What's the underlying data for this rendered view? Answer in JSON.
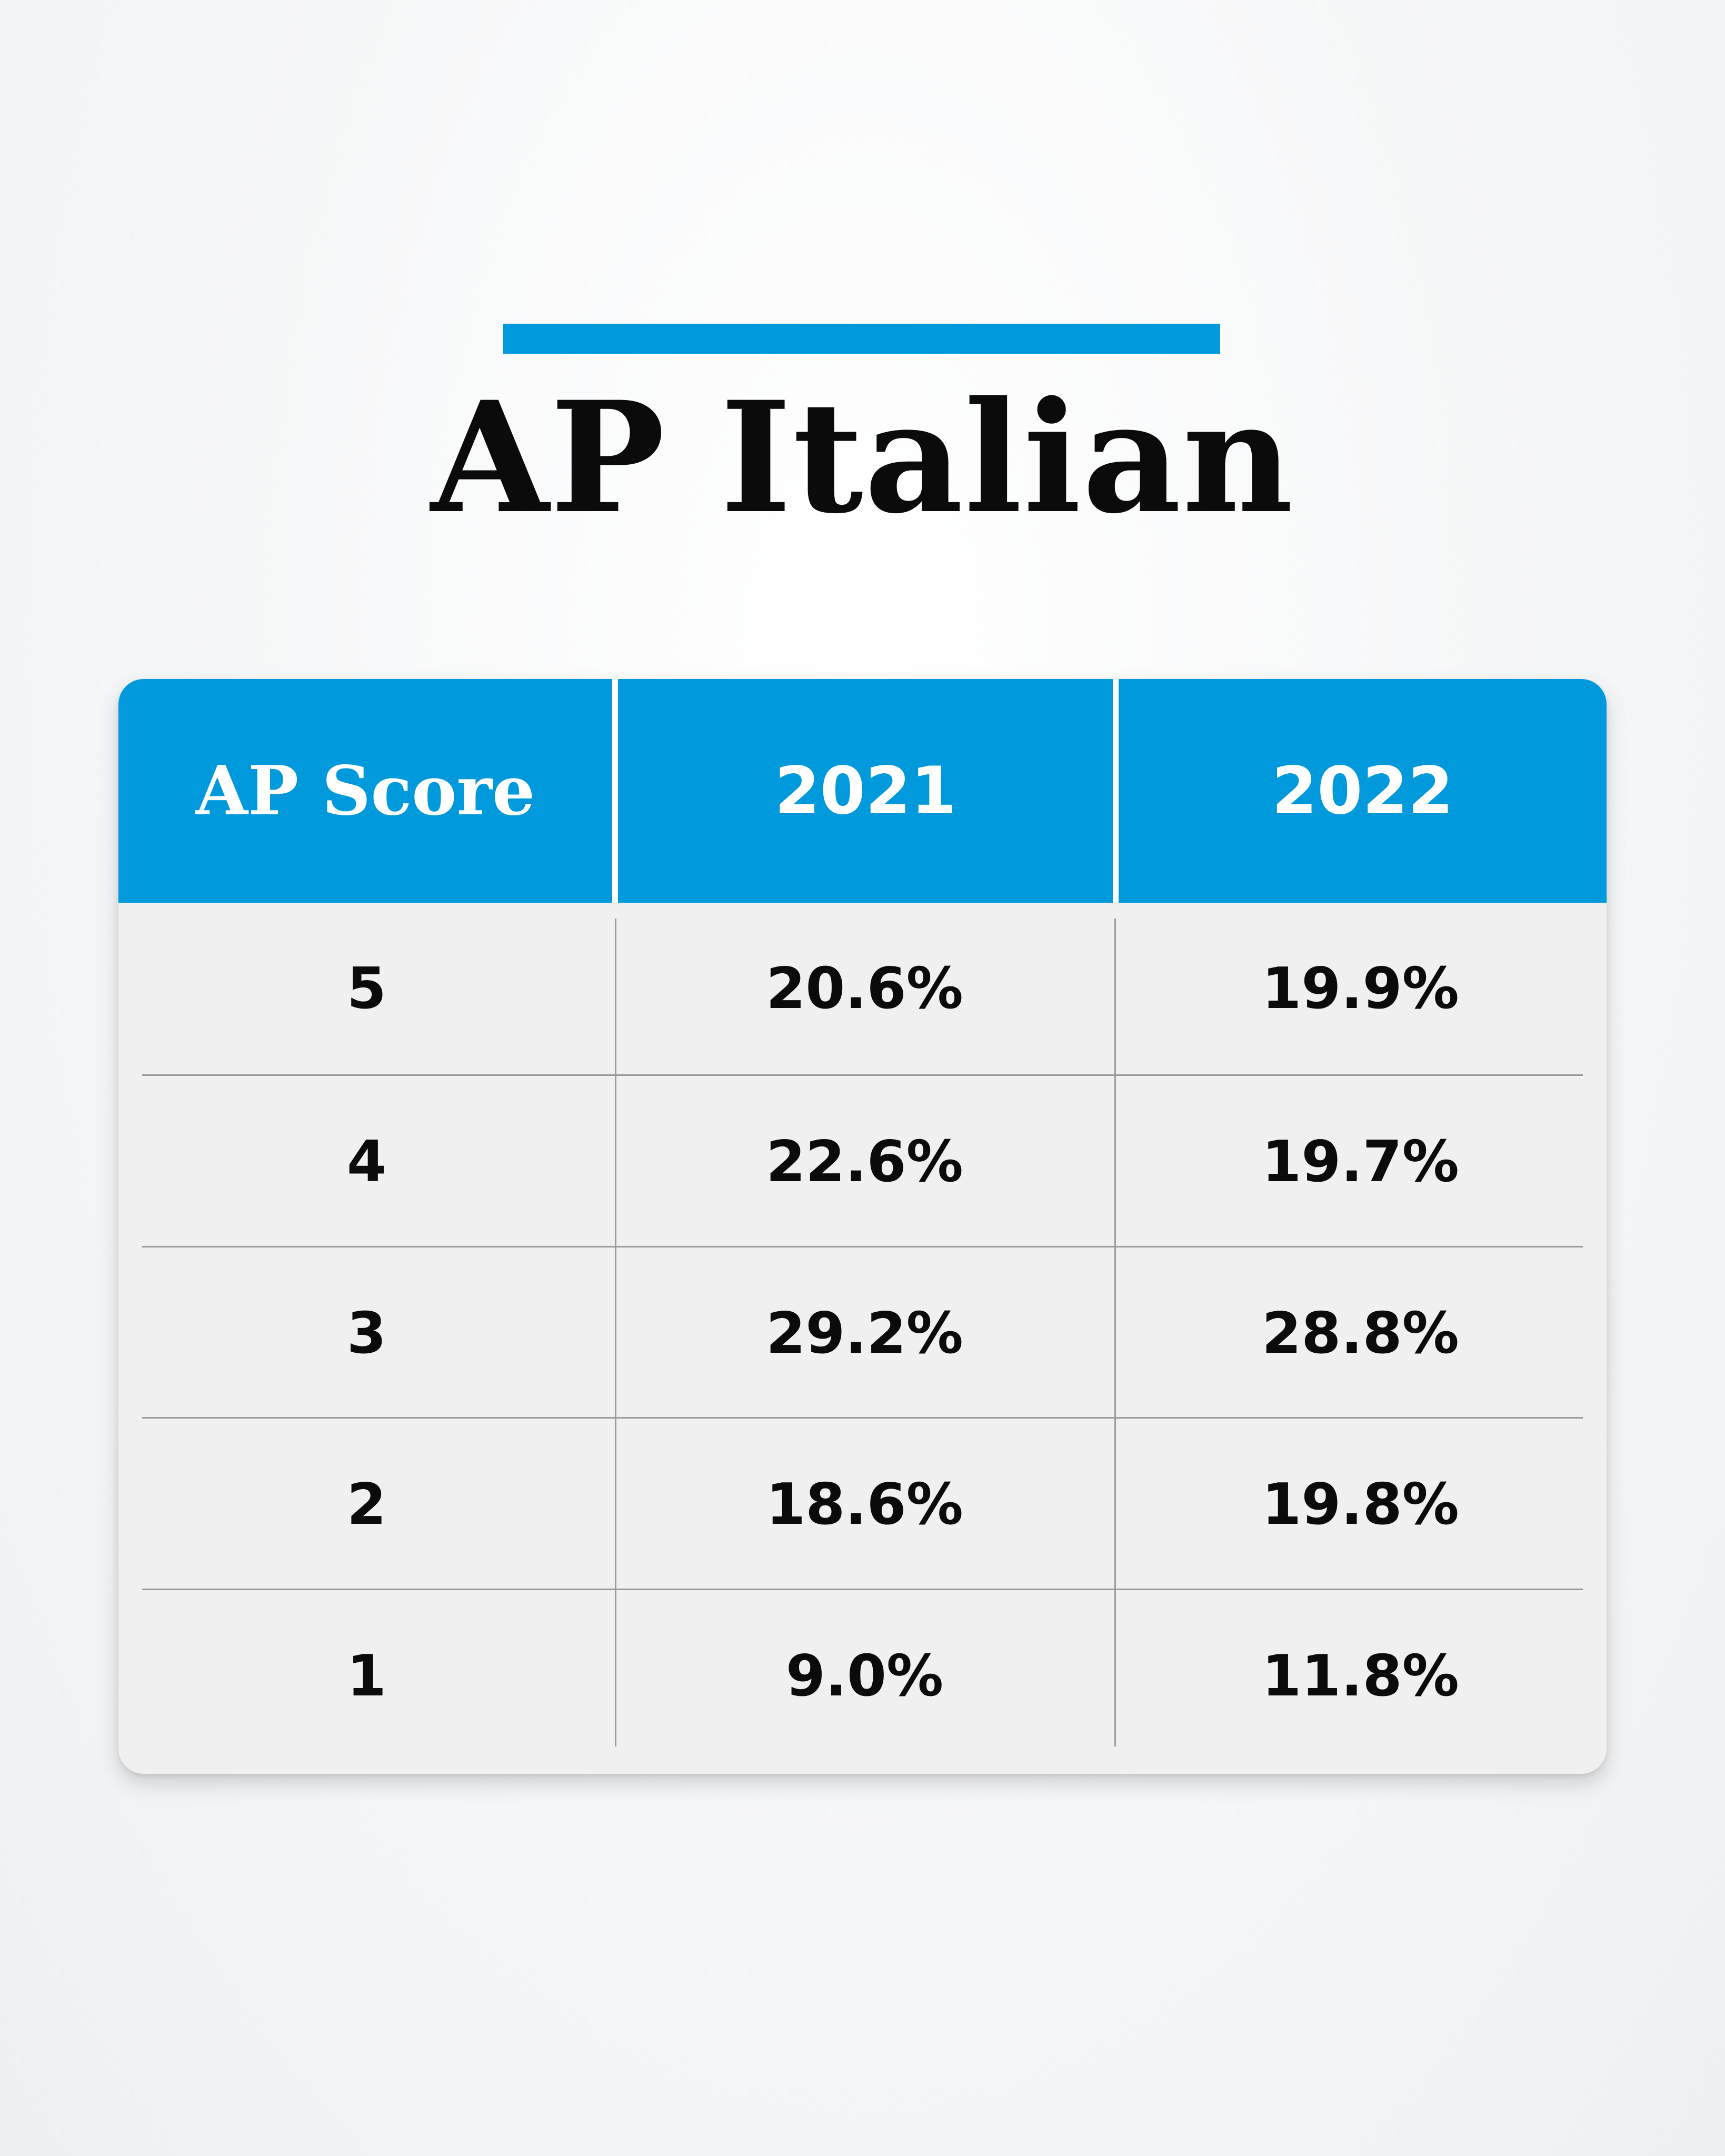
{
  "colors": {
    "accent": "#0099dc",
    "header_bg": "#0099dc",
    "body_bg": "#f0f0f0",
    "text": "#0b0b0b"
  },
  "page": {
    "title": "AP Italian"
  },
  "chart_data": {
    "type": "table",
    "columns": [
      "AP Score",
      "2021",
      "2022"
    ],
    "rows": [
      [
        "5",
        "20.6%",
        "19.9%"
      ],
      [
        "4",
        "22.6%",
        "19.7%"
      ],
      [
        "3",
        "29.2%",
        "28.8%"
      ],
      [
        "2",
        "18.6%",
        "19.8%"
      ],
      [
        "1",
        "9.0%",
        "11.8%"
      ]
    ]
  }
}
